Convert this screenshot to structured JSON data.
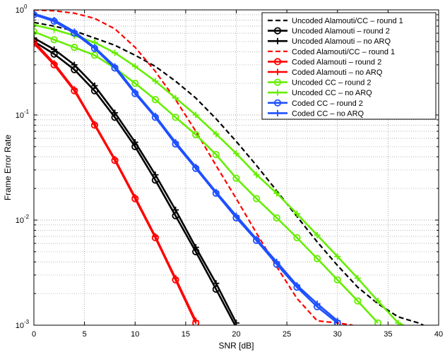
{
  "chart_data": {
    "type": "line",
    "title": "",
    "xlabel": "SNR [dB]",
    "ylabel": "Frame Error Rate",
    "xlim": [
      0,
      40
    ],
    "ylim": [
      0.001,
      1
    ],
    "yscale": "log",
    "grid": true,
    "legend_position": "top-right",
    "x_ticks": [
      0,
      5,
      10,
      15,
      20,
      25,
      30,
      35,
      40
    ],
    "x_tick_labels": [
      "0",
      "5",
      "10",
      "15",
      "20",
      "25",
      "30",
      "35",
      "40"
    ],
    "y_ticks": [
      0.001,
      0.01,
      0.1,
      1
    ],
    "y_tick_base": [
      "10",
      "10",
      "10",
      "10"
    ],
    "y_tick_exp": [
      "-3",
      "-2",
      "-1",
      "0"
    ],
    "series": [
      {
        "name": "Uncoded Alamouti/CC – round 1",
        "color": "#000000",
        "dash": true,
        "marker": "none",
        "x": [
          0,
          2,
          4,
          6,
          8,
          10,
          12,
          14,
          16,
          18,
          20,
          22,
          24,
          26,
          28,
          30,
          32,
          34,
          36,
          38,
          38.5
        ],
        "y": [
          0.76,
          0.7,
          0.63,
          0.54,
          0.46,
          0.37,
          0.29,
          0.21,
          0.145,
          0.092,
          0.056,
          0.033,
          0.019,
          0.0108,
          0.0062,
          0.0037,
          0.0023,
          0.0016,
          0.0012,
          0.00105,
          0.001
        ]
      },
      {
        "name": "Uncoded Alamouti – round 2",
        "color": "#000000",
        "dash": false,
        "marker": "circle",
        "x": [
          0,
          2,
          4,
          6,
          8,
          10,
          12,
          14,
          16,
          18,
          20
        ],
        "y": [
          0.5,
          0.38,
          0.27,
          0.17,
          0.095,
          0.05,
          0.024,
          0.011,
          0.005,
          0.0022,
          0.00095
        ]
      },
      {
        "name": "Uncoded Alamouti – no ARQ",
        "color": "#000000",
        "dash": false,
        "marker": "plus",
        "x": [
          0,
          2,
          4,
          6,
          8,
          10,
          12,
          14,
          16,
          18,
          20
        ],
        "y": [
          0.54,
          0.42,
          0.3,
          0.19,
          0.105,
          0.055,
          0.027,
          0.0125,
          0.0055,
          0.0025,
          0.00105
        ]
      },
      {
        "name": "Coded Alamouti/CC – round 1",
        "color": "#ff0000",
        "dash": true,
        "marker": "none",
        "x": [
          0,
          2,
          4,
          6,
          8,
          10,
          12,
          14,
          16,
          18,
          20,
          22,
          24,
          26,
          28,
          30,
          31.5
        ],
        "y": [
          1.0,
          0.98,
          0.93,
          0.83,
          0.66,
          0.44,
          0.26,
          0.14,
          0.07,
          0.033,
          0.016,
          0.0075,
          0.0036,
          0.0018,
          0.0011,
          0.00105,
          0.001
        ]
      },
      {
        "name": "Coded Alamouti – round 2",
        "color": "#ff0000",
        "dash": false,
        "marker": "circle",
        "x": [
          0,
          2,
          4,
          6,
          8,
          10,
          12,
          14,
          16
        ],
        "y": [
          0.48,
          0.3,
          0.17,
          0.08,
          0.037,
          0.016,
          0.0068,
          0.0027,
          0.00105
        ]
      },
      {
        "name": "Coded Alamouti – no ARQ",
        "color": "#ff0000",
        "dash": false,
        "marker": "plus",
        "x": [
          0,
          2,
          4,
          6,
          8,
          10,
          12,
          14,
          16
        ],
        "y": [
          0.5,
          0.31,
          0.175,
          0.082,
          0.038,
          0.0165,
          0.007,
          0.0028,
          0.0011
        ]
      },
      {
        "name": "Uncoded CC – round 2",
        "color": "#66ee00",
        "dash": false,
        "marker": "circle",
        "x": [
          0,
          2,
          4,
          6,
          8,
          10,
          12,
          14,
          16,
          18,
          20,
          22,
          24,
          26,
          28,
          30,
          32,
          34
        ],
        "y": [
          0.62,
          0.52,
          0.44,
          0.37,
          0.28,
          0.2,
          0.14,
          0.095,
          0.065,
          0.042,
          0.025,
          0.016,
          0.0105,
          0.0068,
          0.0043,
          0.0027,
          0.0017,
          0.00105
        ]
      },
      {
        "name": "Uncoded CC – no ARQ",
        "color": "#66ee00",
        "dash": false,
        "marker": "plus",
        "x": [
          0,
          2,
          4,
          6,
          8,
          10,
          12,
          14,
          16,
          18,
          20,
          22,
          24,
          26,
          28,
          30,
          32,
          34,
          36,
          37
        ],
        "y": [
          0.72,
          0.65,
          0.57,
          0.49,
          0.39,
          0.29,
          0.21,
          0.145,
          0.1,
          0.066,
          0.043,
          0.027,
          0.018,
          0.0115,
          0.0072,
          0.0045,
          0.0028,
          0.0017,
          0.00105,
          0.00095
        ]
      },
      {
        "name": "Coded CC – round 2",
        "color": "#1e50ff",
        "dash": false,
        "marker": "circle",
        "x": [
          0,
          2,
          4,
          6,
          8,
          10,
          12,
          14,
          16,
          18,
          20,
          22,
          24,
          26,
          28,
          30
        ],
        "y": [
          0.9,
          0.78,
          0.6,
          0.43,
          0.28,
          0.16,
          0.095,
          0.053,
          0.031,
          0.018,
          0.0105,
          0.0064,
          0.0038,
          0.0023,
          0.0015,
          0.00105
        ]
      },
      {
        "name": "Coded CC – no ARQ",
        "color": "#1e50ff",
        "dash": false,
        "marker": "plus",
        "x": [
          0,
          2,
          4,
          6,
          8,
          10,
          12,
          14,
          16,
          18,
          20,
          22,
          24,
          26,
          28,
          30
        ],
        "y": [
          0.92,
          0.8,
          0.62,
          0.44,
          0.29,
          0.165,
          0.098,
          0.055,
          0.032,
          0.0185,
          0.011,
          0.0066,
          0.004,
          0.0024,
          0.0016,
          0.0011
        ]
      }
    ]
  }
}
